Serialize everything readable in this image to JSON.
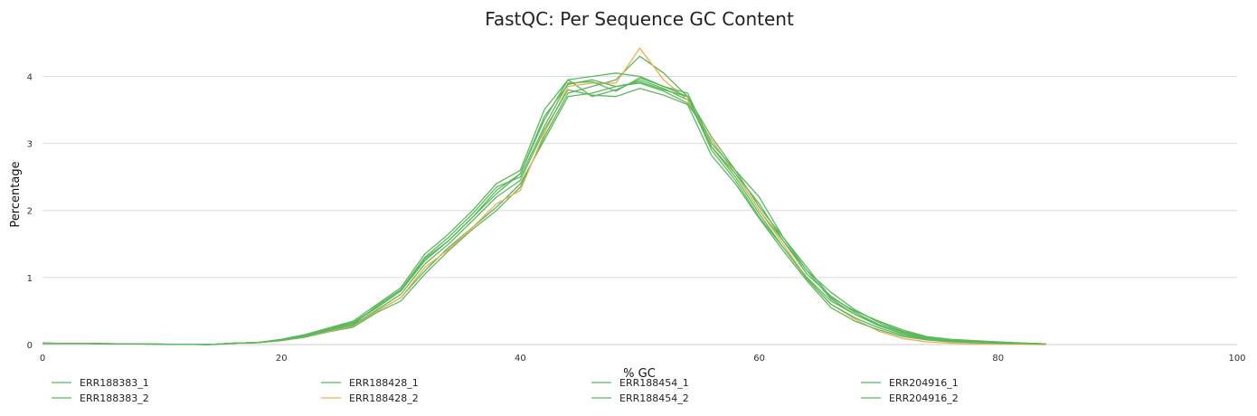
{
  "chart_data": {
    "type": "line",
    "title": "FastQC: Per Sequence GC Content",
    "xlabel": "% GC",
    "ylabel": "Percentage",
    "xlim": [
      0,
      100
    ],
    "ylim": [
      0,
      4.6
    ],
    "xticks": [
      0,
      20,
      40,
      60,
      80,
      100
    ],
    "yticks": [
      0,
      1,
      2,
      3,
      4
    ],
    "grid": "horizontal",
    "legend_position": "bottom",
    "series": [
      {
        "name": "ERR188383_1",
        "color": "#5cb85c",
        "x": [
          0,
          14,
          16,
          18,
          20,
          22,
          24,
          26,
          28,
          30,
          32,
          34,
          36,
          38,
          40,
          42,
          44,
          46,
          48,
          50,
          52,
          54,
          56,
          58,
          60,
          62,
          64,
          66,
          68,
          70,
          72,
          74,
          76,
          78,
          80,
          84
        ],
        "y": [
          0.02,
          0,
          0.02,
          0.03,
          0.07,
          0.12,
          0.2,
          0.28,
          0.5,
          0.7,
          1.1,
          1.45,
          1.75,
          2.05,
          2.4,
          3.05,
          3.7,
          3.75,
          3.85,
          3.9,
          3.78,
          3.6,
          3.05,
          2.55,
          2.0,
          1.55,
          1.05,
          0.72,
          0.48,
          0.3,
          0.18,
          0.1,
          0.07,
          0.05,
          0.03,
          0.01
        ]
      },
      {
        "name": "ERR188383_2",
        "color": "#5cb85c",
        "x": [
          0,
          14,
          16,
          18,
          20,
          22,
          24,
          26,
          28,
          30,
          32,
          34,
          36,
          38,
          40,
          42,
          44,
          46,
          48,
          50,
          52,
          54,
          56,
          58,
          60,
          62,
          64,
          66,
          68,
          70,
          72,
          74,
          76,
          78,
          80,
          84
        ],
        "y": [
          0.02,
          0,
          0.02,
          0.03,
          0.07,
          0.14,
          0.23,
          0.32,
          0.55,
          0.8,
          1.25,
          1.55,
          1.9,
          2.25,
          2.55,
          3.35,
          3.95,
          3.7,
          3.8,
          3.95,
          3.82,
          3.65,
          2.95,
          2.5,
          1.95,
          1.45,
          1.0,
          0.65,
          0.45,
          0.28,
          0.16,
          0.09,
          0.06,
          0.04,
          0.02,
          0.01
        ]
      },
      {
        "name": "ERR188428_1",
        "color": "#5cb85c",
        "x": [
          0,
          14,
          16,
          18,
          20,
          22,
          24,
          26,
          28,
          30,
          32,
          34,
          36,
          38,
          40,
          42,
          44,
          46,
          48,
          50,
          52,
          54,
          56,
          58,
          60,
          62,
          64,
          66,
          68,
          70,
          72,
          74,
          76,
          78,
          80,
          84
        ],
        "y": [
          0.02,
          0,
          0.02,
          0.03,
          0.06,
          0.11,
          0.19,
          0.26,
          0.48,
          0.65,
          1.05,
          1.4,
          1.72,
          2.0,
          2.35,
          3.1,
          3.75,
          3.85,
          3.95,
          4.3,
          4.05,
          3.7,
          3.1,
          2.6,
          2.05,
          1.6,
          1.1,
          0.78,
          0.52,
          0.33,
          0.2,
          0.11,
          0.07,
          0.05,
          0.03,
          0.01
        ]
      },
      {
        "name": "ERR188428_2",
        "color": "#f0ad4e",
        "x": [
          0,
          14,
          16,
          18,
          20,
          22,
          24,
          26,
          28,
          30,
          32,
          34,
          36,
          38,
          40,
          42,
          44,
          46,
          48,
          50,
          52,
          54,
          56,
          58,
          60,
          62,
          64,
          66,
          68,
          70,
          72,
          74,
          76,
          78,
          80,
          84
        ],
        "y": [
          0.02,
          0,
          0.02,
          0.03,
          0.06,
          0.12,
          0.2,
          0.28,
          0.5,
          0.7,
          1.15,
          1.42,
          1.75,
          2.1,
          2.3,
          3.15,
          3.85,
          3.9,
          3.9,
          4.42,
          3.95,
          3.65,
          3.05,
          2.55,
          2.0,
          1.5,
          0.98,
          0.6,
          0.38,
          0.2,
          0.09,
          0.04,
          0.02,
          0.01,
          0.01,
          0
        ]
      },
      {
        "name": "ERR188454_1",
        "color": "#5cb85c",
        "x": [
          0,
          14,
          16,
          18,
          20,
          22,
          24,
          26,
          28,
          30,
          32,
          34,
          36,
          38,
          40,
          42,
          44,
          46,
          48,
          50,
          52,
          54,
          56,
          58,
          60,
          62,
          64,
          66,
          68,
          70,
          72,
          74,
          76,
          78,
          80,
          84
        ],
        "y": [
          0.02,
          0,
          0.02,
          0.03,
          0.07,
          0.13,
          0.22,
          0.3,
          0.58,
          0.82,
          1.3,
          1.6,
          1.95,
          2.35,
          2.5,
          3.25,
          3.9,
          3.92,
          3.78,
          3.98,
          3.85,
          3.7,
          2.9,
          2.45,
          1.9,
          1.45,
          0.98,
          0.6,
          0.4,
          0.25,
          0.14,
          0.08,
          0.05,
          0.03,
          0.02,
          0.01
        ]
      },
      {
        "name": "ERR188454_2",
        "color": "#5cb85c",
        "x": [
          0,
          14,
          16,
          18,
          20,
          22,
          24,
          26,
          28,
          30,
          32,
          34,
          36,
          38,
          40,
          42,
          44,
          46,
          48,
          50,
          52,
          54,
          56,
          58,
          60,
          62,
          64,
          66,
          68,
          70,
          72,
          74,
          76,
          78,
          80,
          84
        ],
        "y": [
          0.02,
          0,
          0.02,
          0.03,
          0.06,
          0.12,
          0.21,
          0.29,
          0.52,
          0.75,
          1.2,
          1.5,
          1.85,
          2.2,
          2.45,
          3.2,
          3.8,
          3.72,
          3.7,
          3.82,
          3.72,
          3.58,
          2.82,
          2.4,
          1.88,
          1.4,
          0.95,
          0.55,
          0.35,
          0.22,
          0.12,
          0.07,
          0.04,
          0.03,
          0.02,
          0.01
        ]
      },
      {
        "name": "ERR204916_1",
        "color": "#5cb85c",
        "x": [
          0,
          14,
          16,
          18,
          20,
          22,
          24,
          26,
          28,
          30,
          32,
          34,
          36,
          38,
          40,
          42,
          44,
          46,
          48,
          50,
          52,
          54,
          56,
          58,
          60,
          62,
          64,
          66,
          68,
          70,
          72,
          74,
          76,
          78,
          80,
          84
        ],
        "y": [
          0.02,
          0,
          0.02,
          0.03,
          0.08,
          0.15,
          0.25,
          0.35,
          0.6,
          0.85,
          1.35,
          1.65,
          2.0,
          2.4,
          2.6,
          3.5,
          3.95,
          4.0,
          4.05,
          4.0,
          3.85,
          3.75,
          3.0,
          2.6,
          2.2,
          1.6,
          1.15,
          0.7,
          0.5,
          0.35,
          0.22,
          0.12,
          0.08,
          0.06,
          0.04,
          0.01
        ]
      },
      {
        "name": "ERR204916_2",
        "color": "#5cb85c",
        "x": [
          0,
          14,
          16,
          18,
          20,
          22,
          24,
          26,
          28,
          30,
          32,
          34,
          36,
          38,
          40,
          42,
          44,
          46,
          48,
          50,
          52,
          54,
          56,
          58,
          60,
          62,
          64,
          66,
          68,
          70,
          72,
          74,
          76,
          78,
          80,
          84
        ],
        "y": [
          0.02,
          0,
          0.02,
          0.03,
          0.07,
          0.14,
          0.24,
          0.33,
          0.56,
          0.8,
          1.28,
          1.55,
          1.9,
          2.3,
          2.55,
          3.4,
          3.88,
          3.95,
          3.85,
          3.92,
          3.8,
          3.7,
          2.95,
          2.55,
          2.1,
          1.55,
          1.1,
          0.68,
          0.45,
          0.3,
          0.19,
          0.1,
          0.07,
          0.05,
          0.03,
          0.01
        ]
      }
    ]
  }
}
